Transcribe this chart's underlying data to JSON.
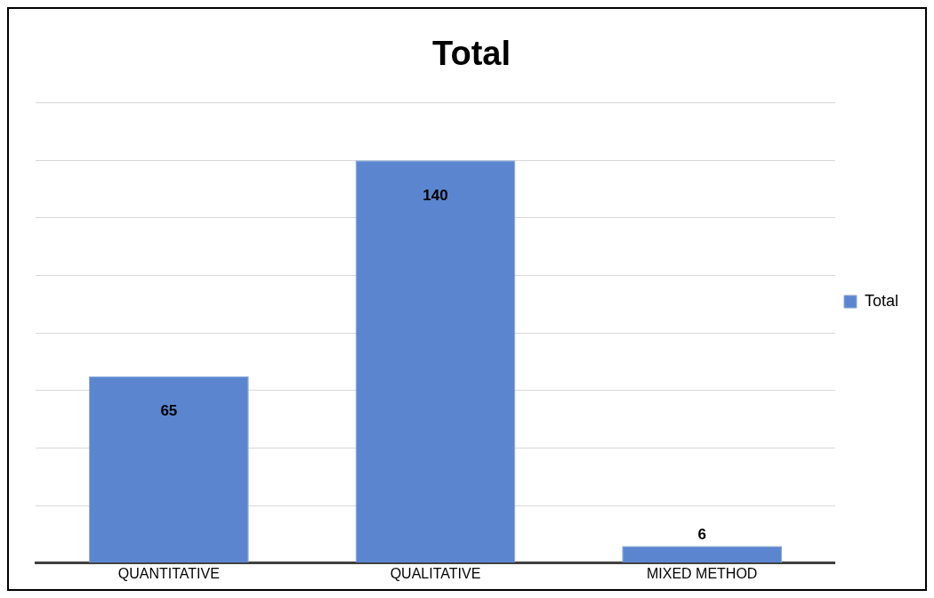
{
  "chart_data": {
    "type": "bar",
    "title": "Total",
    "categories": [
      "QUANTITATIVE",
      "QUALITATIVE",
      "MIXED METHOD"
    ],
    "series": [
      {
        "name": "Total",
        "color": "#5b86cf",
        "values": [
          65,
          140,
          6
        ]
      }
    ],
    "ylim": [
      0,
      160
    ],
    "yticks": [
      0,
      {
        "value": 20,
        "label": null
      },
      {
        "value": 40,
        "label": null
      },
      {
        "value": 60,
        "label": null
      },
      {
        "value": 80,
        "label": null
      },
      {
        "value": 100,
        "label": null
      },
      {
        "value": 120,
        "label": null
      },
      {
        "value": 140,
        "label": null
      },
      {
        "value": 160,
        "label": null
      }
    ],
    "tick_labels": "x",
    "grid": "y",
    "legend": "right",
    "data_labels": true
  }
}
